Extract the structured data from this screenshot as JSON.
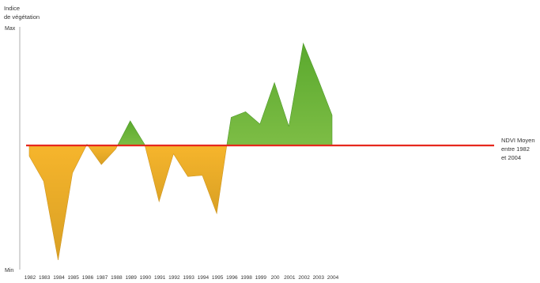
{
  "chart_data": {
    "type": "area",
    "title": "",
    "ylabel": [
      "Indice",
      "de végétation"
    ],
    "xlabel": "",
    "y_ticks": [
      "Max",
      "Min"
    ],
    "ylim": [
      -1,
      1
    ],
    "x": [
      "1982",
      "1983",
      "1984",
      "1985",
      "1986",
      "1987",
      "1988",
      "1989",
      "1990",
      "1991",
      "1992",
      "1993",
      "1994",
      "1995",
      "1996",
      "1998",
      "1999",
      "200",
      "2001",
      "2002",
      "2003",
      "2004"
    ],
    "values": [
      -0.09,
      -0.3,
      -0.96,
      -0.23,
      0.01,
      -0.16,
      -0.03,
      0.22,
      0.01,
      -0.47,
      -0.07,
      -0.26,
      -0.25,
      -0.57,
      0.25,
      0.3,
      0.19,
      0.56,
      0.17,
      0.91,
      0.6,
      0.27
    ],
    "reference_line": {
      "value": 0,
      "label": [
        "NDVI Moyen",
        "entre 1982",
        "et 2004"
      ],
      "color": "#e6281e"
    },
    "colors": {
      "above": "#6db33f",
      "below": "#f5b22a",
      "axis": "#999999"
    },
    "grid": false,
    "legend": "none"
  }
}
